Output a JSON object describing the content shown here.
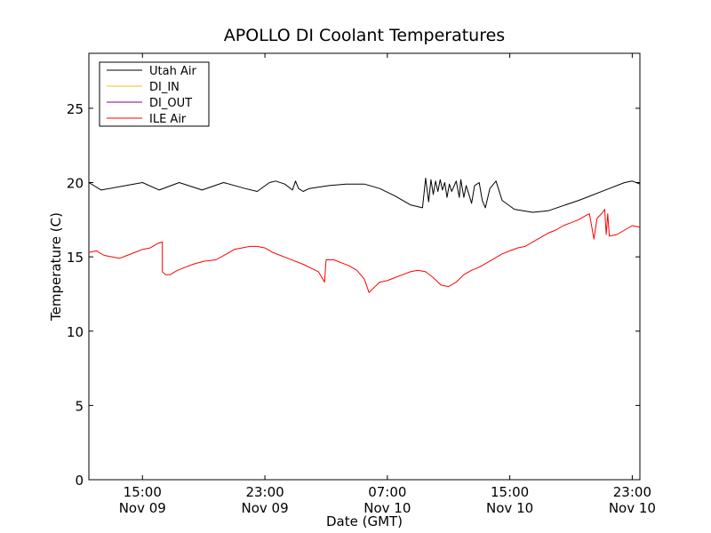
{
  "chart_data": {
    "type": "line",
    "title": "APOLLO DI Coolant Temperatures",
    "xlabel": "Date (GMT)",
    "ylabel": "Temperature (C)",
    "xlim": [
      0,
      36
    ],
    "ylim": [
      0,
      28.7
    ],
    "x_unit": "hours since Nov 09 11:30 GMT",
    "grid": false,
    "legend_position": "top-left",
    "y_ticks": [
      0,
      5,
      10,
      15,
      20,
      25
    ],
    "y_tick_labels": [
      "0",
      "5",
      "10",
      "15",
      "20",
      "25"
    ],
    "x_ticks": [
      3.5,
      11.5,
      19.5,
      27.5,
      35.5
    ],
    "x_tick_labels": [
      {
        "time": "15:00",
        "date": "Nov 09"
      },
      {
        "time": "23:00",
        "date": "Nov 09"
      },
      {
        "time": "07:00",
        "date": "Nov 10"
      },
      {
        "time": "15:00",
        "date": "Nov 10"
      },
      {
        "time": "23:00",
        "date": "Nov 10"
      }
    ],
    "series": [
      {
        "name": "Utah Air",
        "color": "#000000",
        "x": [
          0.0,
          0.8,
          3.5,
          4.6,
          5.9,
          7.4,
          8.8,
          10.2,
          11.0,
          11.8,
          12.2,
          12.8,
          13.3,
          13.5,
          13.7,
          14.0,
          14.4,
          15.7,
          16.8,
          18.0,
          19.0,
          20.0,
          20.5,
          21.0,
          21.8,
          22.0,
          22.2,
          22.35,
          22.5,
          22.65,
          22.8,
          22.95,
          23.1,
          23.25,
          23.4,
          23.55,
          23.7,
          24.0,
          24.2,
          24.3,
          24.5,
          24.65,
          24.8,
          25.0,
          25.2,
          25.5,
          25.7,
          25.9,
          26.2,
          26.6,
          27.0,
          27.8,
          29.0,
          30.0,
          32.0,
          34.0,
          35.0,
          35.5,
          36.0
        ],
        "values": [
          20.0,
          19.5,
          20.0,
          19.5,
          20.0,
          19.5,
          20.0,
          19.6,
          19.4,
          20.0,
          20.1,
          19.9,
          19.5,
          20.1,
          19.6,
          19.4,
          19.6,
          19.8,
          19.9,
          19.9,
          19.6,
          19.1,
          18.8,
          18.5,
          18.3,
          20.3,
          18.7,
          20.2,
          19.2,
          20.1,
          19.4,
          20.2,
          19.5,
          20.0,
          19.0,
          19.9,
          19.4,
          20.1,
          19.0,
          20.2,
          19.0,
          19.8,
          19.3,
          18.6,
          19.8,
          20.0,
          18.8,
          18.3,
          19.6,
          20.1,
          18.8,
          18.2,
          18.0,
          18.1,
          18.8,
          19.6,
          20.0,
          20.1,
          19.9
        ]
      },
      {
        "name": "DI_IN",
        "color": "#e8c020",
        "x": [],
        "values": []
      },
      {
        "name": "DI_OUT",
        "color": "#800080",
        "x": [],
        "values": []
      },
      {
        "name": "ILE Air",
        "color": "#ff0000",
        "x": [
          0.0,
          0.5,
          1.0,
          1.5,
          2.0,
          2.5,
          3.0,
          3.5,
          4.0,
          4.5,
          4.8,
          4.8,
          5.0,
          5.3,
          5.8,
          6.3,
          6.8,
          7.5,
          8.3,
          9.0,
          9.5,
          10.0,
          10.5,
          11.0,
          11.5,
          12.0,
          13.0,
          14.0,
          15.0,
          15.4,
          15.5,
          16.0,
          16.5,
          17.0,
          17.5,
          18.0,
          18.3,
          18.6,
          19.0,
          19.5,
          20.0,
          20.5,
          21.0,
          21.5,
          22.0,
          22.5,
          23.0,
          23.5,
          24.0,
          24.5,
          25.0,
          25.5,
          26.0,
          26.5,
          27.0,
          27.5,
          28.0,
          28.5,
          29.0,
          29.5,
          30.0,
          30.5,
          31.0,
          31.5,
          32.0,
          32.5,
          32.7,
          33.0,
          33.2,
          33.5,
          33.7,
          33.8,
          33.9,
          34.0,
          34.5,
          35.0,
          35.5,
          36.0
        ],
        "values": [
          15.3,
          15.4,
          15.1,
          15.0,
          14.9,
          15.1,
          15.3,
          15.5,
          15.6,
          15.9,
          16.0,
          14.0,
          13.8,
          13.8,
          14.1,
          14.3,
          14.5,
          14.7,
          14.8,
          15.2,
          15.5,
          15.6,
          15.7,
          15.7,
          15.6,
          15.3,
          14.9,
          14.5,
          14.0,
          13.3,
          14.8,
          14.8,
          14.6,
          14.4,
          14.1,
          13.5,
          12.6,
          12.9,
          13.3,
          13.4,
          13.6,
          13.8,
          14.0,
          14.1,
          14.0,
          13.6,
          13.1,
          13.0,
          13.3,
          13.8,
          14.1,
          14.3,
          14.6,
          14.9,
          15.2,
          15.4,
          15.6,
          15.7,
          16.0,
          16.3,
          16.6,
          16.8,
          17.1,
          17.3,
          17.5,
          17.8,
          17.9,
          16.2,
          17.6,
          17.9,
          18.2,
          16.5,
          17.9,
          16.4,
          16.5,
          16.8,
          17.1,
          17.0
        ]
      }
    ]
  }
}
